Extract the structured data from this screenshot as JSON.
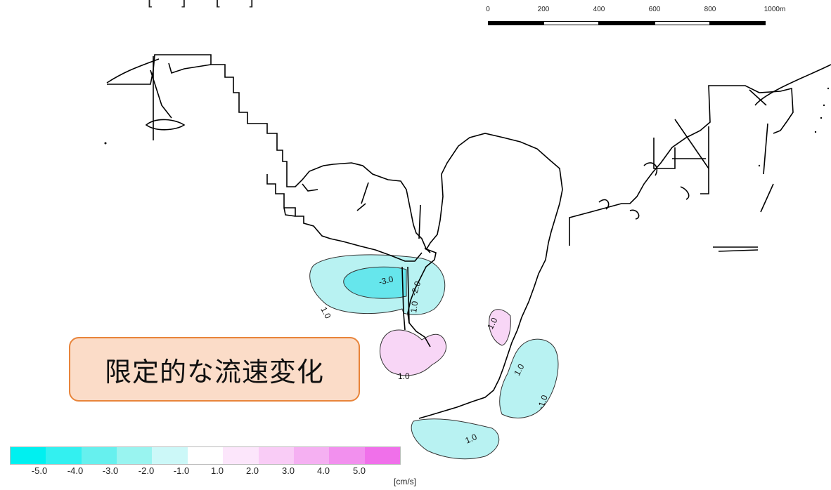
{
  "callout": {
    "text": "限定的な流速変化"
  },
  "scale_bar": {
    "ticks": [
      "0",
      "200",
      "400",
      "600",
      "800",
      "1000m"
    ]
  },
  "legend": {
    "unit": "[cm/s]",
    "labels": [
      "-5.0",
      "-4.0",
      "-3.0",
      "-2.0",
      "-1.0",
      "1.0",
      "2.0",
      "3.0",
      "4.0",
      "5.0"
    ],
    "colors": [
      "#00f0f0",
      "#33f0f0",
      "#66f0ee",
      "#99f4f0",
      "#ccf8f8",
      "#ffffff",
      "#fce6fb",
      "#f9ccf6",
      "#f5b0f2",
      "#f290ee",
      "#f070ea"
    ]
  },
  "contours": {
    "labels": [
      "-3.0",
      "-2.0",
      "1.0",
      "1.0",
      "1.0",
      "1.0",
      "1.0",
      "1.0",
      "-1.0"
    ],
    "colors": {
      "negative": "#b8f2f2",
      "negative_strong": "#66e6ec",
      "positive": "#f8d6f6"
    }
  },
  "top_partial_text": "[   ]  [  ]"
}
